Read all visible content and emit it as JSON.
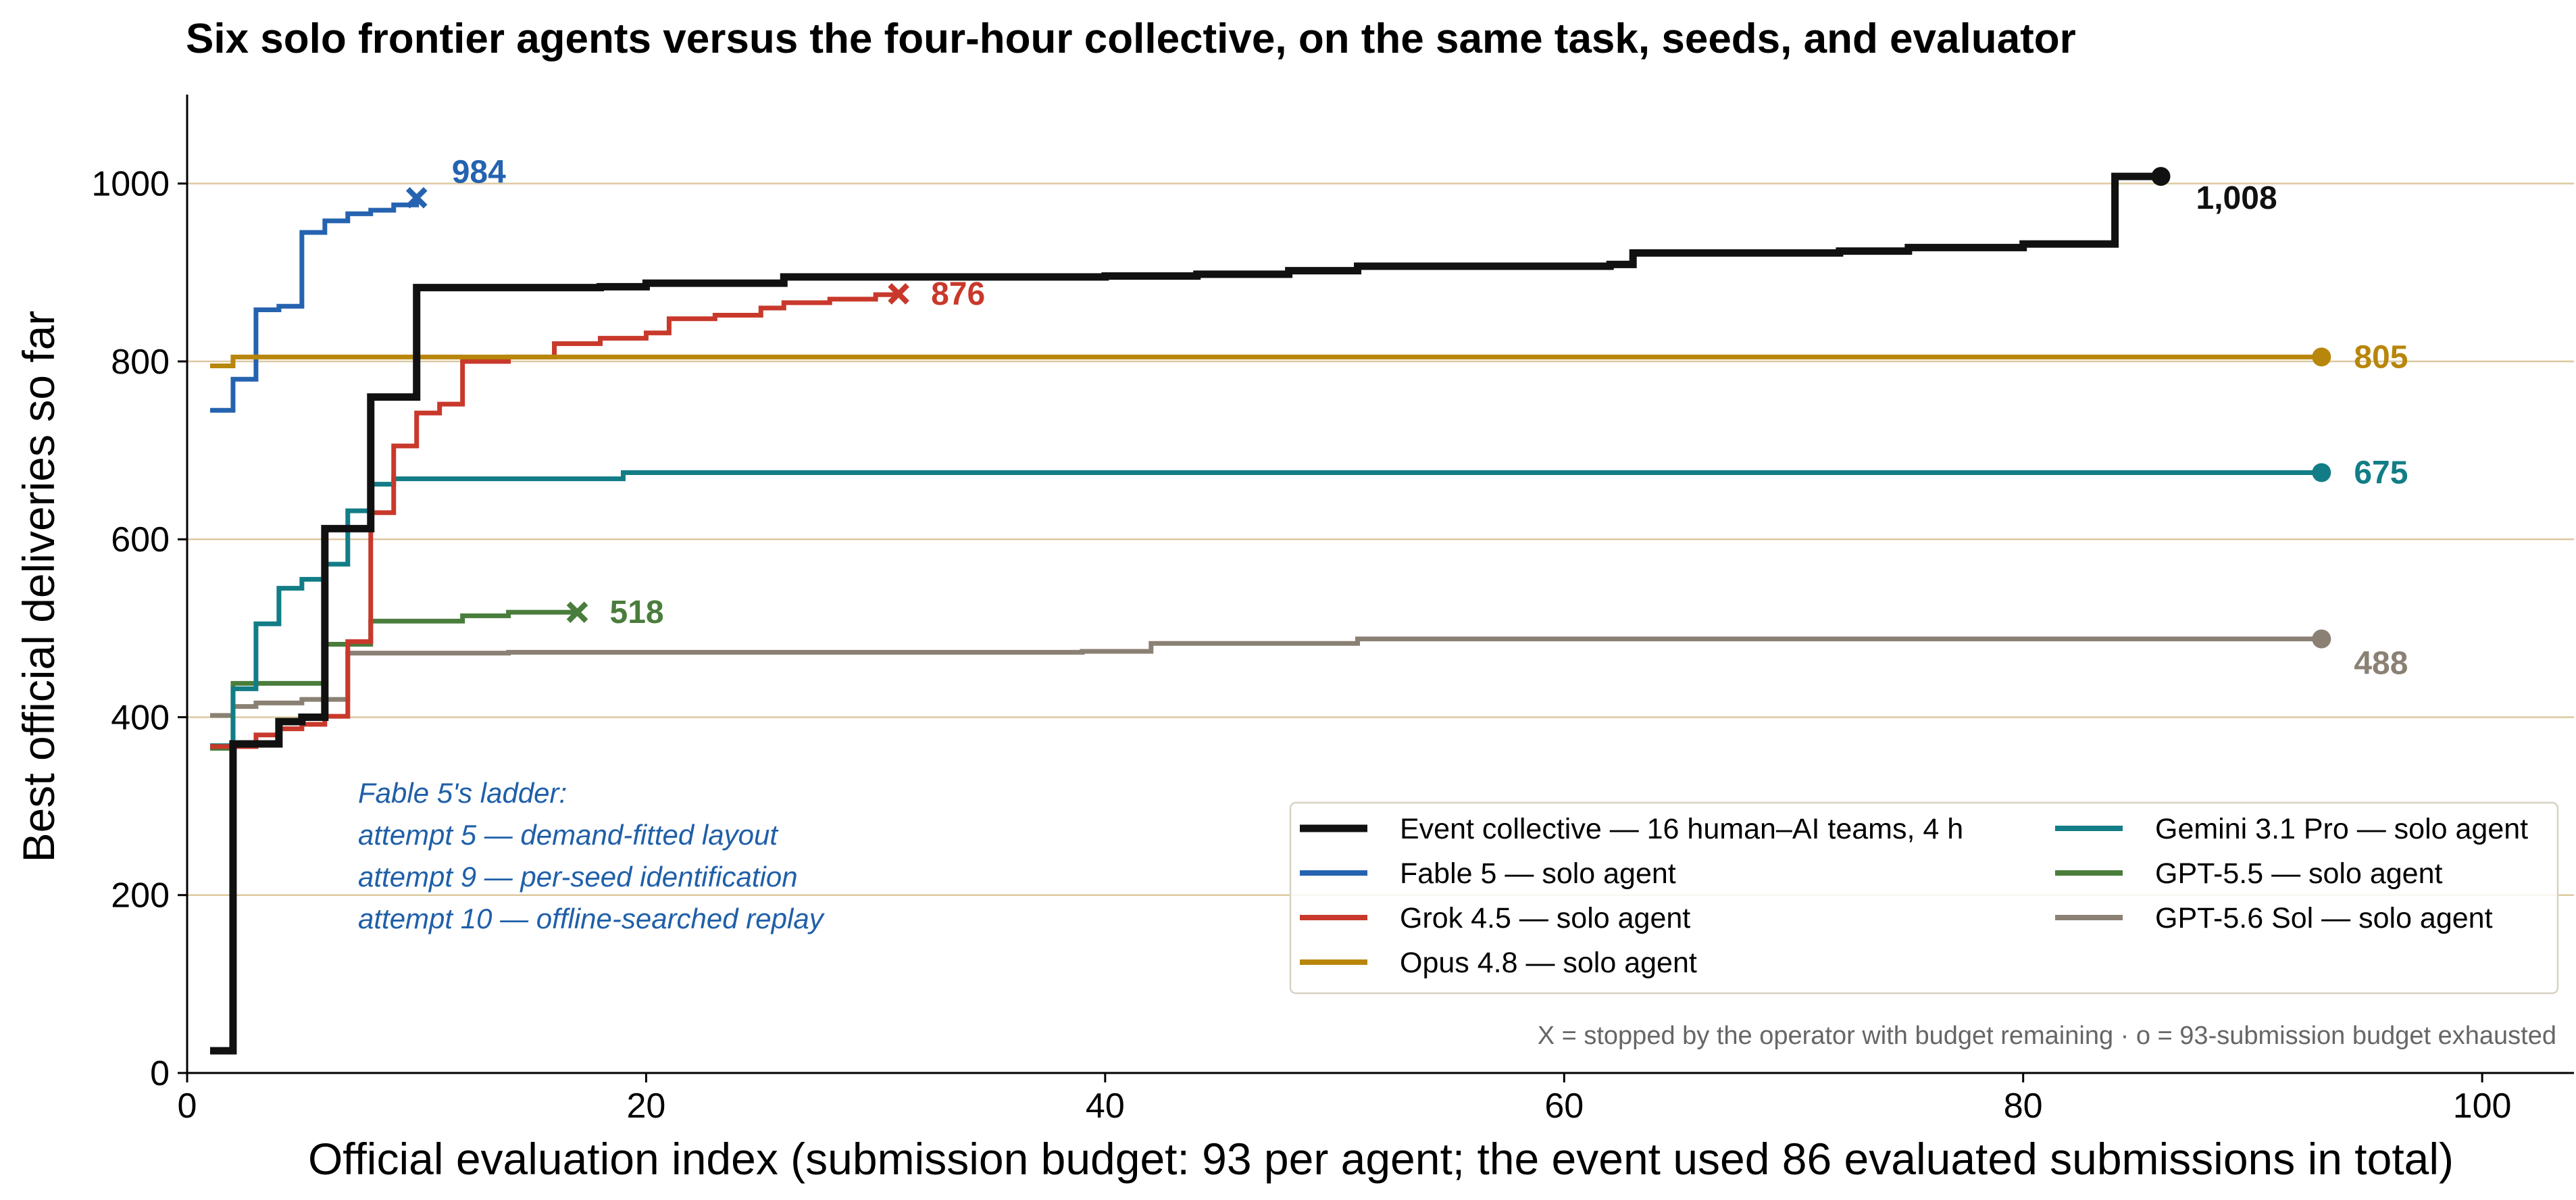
{
  "chart_data": {
    "type": "line",
    "title": "Six solo frontier agents versus the four-hour collective, on the same task, seeds, and evaluator",
    "xlabel": "Official evaluation index (submission budget: 93 per agent; the event used 86 evaluated submissions in total)",
    "ylabel": "Best official deliveries so far",
    "xlim": [
      0,
      104
    ],
    "ylim": [
      0,
      1100
    ],
    "xticks": [
      0,
      20,
      40,
      60,
      80,
      100
    ],
    "yticks": [
      0,
      200,
      400,
      600,
      800,
      1000
    ],
    "grid": "horizontal",
    "legend_position": "lower-right",
    "step": true,
    "series": [
      {
        "name": "Event collective — 16 human–AI teams, 4 h",
        "color": "#111111",
        "x": [
          1,
          2,
          4,
          5,
          6,
          8,
          10,
          18,
          20,
          26,
          40,
          44,
          48,
          51,
          62,
          63,
          72,
          75,
          80,
          84,
          86
        ],
        "y": [
          25,
          370,
          395,
          400,
          612,
          760,
          883,
          884,
          888,
          895,
          896,
          898,
          902,
          907,
          909,
          922,
          924,
          928,
          932,
          1008,
          1008
        ],
        "end_marker": "o",
        "end_label": "1,008"
      },
      {
        "name": "Fable 5 — solo agent",
        "color": "#2563b0",
        "x": [
          1,
          2,
          3,
          4,
          5,
          6,
          7,
          8,
          9,
          10
        ],
        "y": [
          745,
          780,
          858,
          862,
          945,
          958,
          966,
          970,
          976,
          984
        ],
        "end_marker": "x",
        "end_label": "984"
      },
      {
        "name": "Grok 4.5 — solo agent",
        "color": "#c8392b",
        "x": [
          1,
          3,
          4,
          5,
          6,
          7,
          8,
          9,
          10,
          11,
          12,
          14,
          16,
          18,
          20,
          21,
          23,
          25,
          26,
          28,
          30,
          31
        ],
        "y": [
          367,
          380,
          387,
          392,
          401,
          485,
          630,
          705,
          742,
          752,
          800,
          805,
          820,
          826,
          832,
          848,
          852,
          860,
          866,
          870,
          875,
          876
        ],
        "end_marker": "x",
        "end_label": "876"
      },
      {
        "name": "Opus 4.8 — solo agent",
        "color": "#b8860b",
        "x": [
          1,
          2,
          93
        ],
        "y": [
          795,
          805,
          805
        ],
        "end_marker": "o",
        "end_label": "805"
      },
      {
        "name": "Gemini 3.1 Pro — solo agent",
        "color": "#127d86",
        "x": [
          1,
          2,
          3,
          4,
          5,
          6,
          7,
          8,
          9,
          19,
          93
        ],
        "y": [
          368,
          432,
          505,
          545,
          555,
          572,
          632,
          662,
          668,
          675,
          675
        ],
        "end_marker": "o",
        "end_label": "675"
      },
      {
        "name": "GPT-5.5 — solo agent",
        "color": "#4a7d3c",
        "x": [
          1,
          2,
          6,
          8,
          12,
          14,
          17
        ],
        "y": [
          365,
          438,
          482,
          508,
          514,
          518,
          518
        ],
        "end_marker": "x",
        "end_label": "518"
      },
      {
        "name": "GPT-5.6 Sol — solo agent",
        "color": "#8a8174",
        "x": [
          1,
          2,
          3,
          5,
          7,
          14,
          35,
          39,
          42,
          51,
          93
        ],
        "y": [
          402,
          412,
          416,
          420,
          472,
          473,
          473,
          474,
          483,
          488,
          488
        ],
        "end_marker": "o",
        "end_label": "488"
      }
    ],
    "annotation": {
      "lines": [
        "Fable 5's ladder:",
        "attempt 5 — demand-fitted layout",
        "attempt 9 — per-seed identification",
        "attempt 10 — offline-searched replay"
      ],
      "color": "#1f5fa8"
    },
    "footnote": "X = stopped by the operator with budget remaining  ·  o = 93-submission budget exhausted"
  }
}
